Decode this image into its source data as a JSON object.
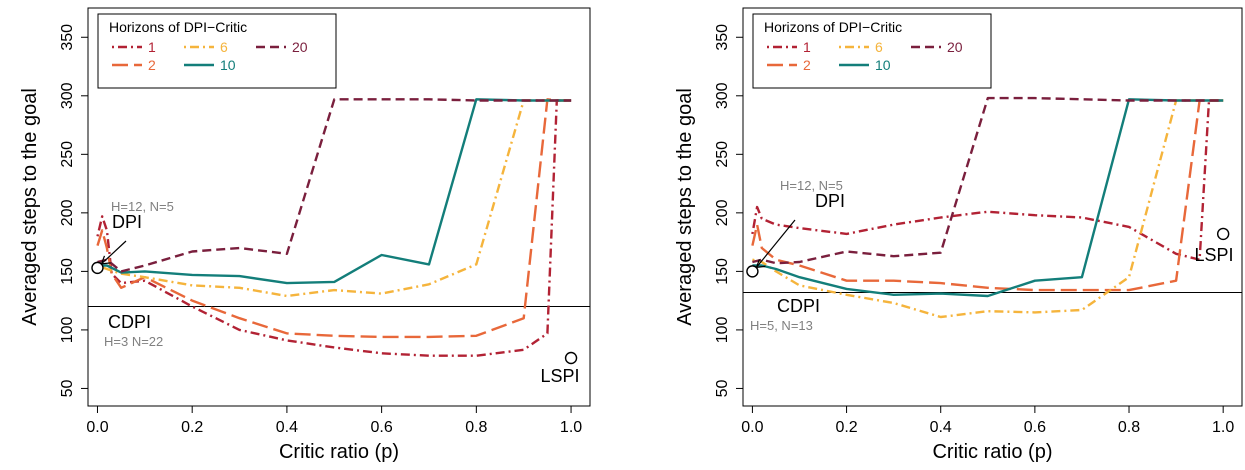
{
  "colors": {
    "1": "#b22234",
    "2": "#e8683a",
    "6": "#f5b43c",
    "10": "#137e7a",
    "20": "#7a1f3d",
    "ref_line": "#000000",
    "annotation_gray": "#808080"
  },
  "chart_data": [
    {
      "type": "line",
      "xlabel": "Critic ratio (p)",
      "ylabel": "Averaged steps to the goal",
      "xlim": [
        -0.02,
        1.04
      ],
      "ylim": [
        35,
        375
      ],
      "xticks": [
        "0.0",
        "0.2",
        "0.4",
        "0.6",
        "0.8",
        "1.0"
      ],
      "yticks": [
        "50",
        "100",
        "150",
        "200",
        "250",
        "300",
        "350"
      ],
      "legend": {
        "title": "Horizons of DPI−Critic",
        "position": "top-left",
        "entries": [
          "1",
          "2",
          "6",
          "10",
          "20"
        ]
      },
      "hline": {
        "y": 120,
        "label": "CDPI",
        "note": "H=3 N=22"
      },
      "annotations": [
        {
          "label": "DPI",
          "note": "H=12, N=5",
          "point": [
            0.0,
            153
          ]
        },
        {
          "label": "LSPI",
          "point": [
            1.0,
            76
          ]
        }
      ],
      "series": [
        {
          "name": "1",
          "style": "dotdash",
          "x": [
            0.0,
            0.01,
            0.02,
            0.03,
            0.05,
            0.1,
            0.2,
            0.3,
            0.4,
            0.5,
            0.6,
            0.7,
            0.8,
            0.9,
            0.95,
            0.97,
            1.0
          ],
          "y": [
            180,
            197,
            185,
            148,
            140,
            142,
            120,
            100,
            91,
            85,
            80,
            78,
            78,
            83,
            97,
            296,
            296
          ]
        },
        {
          "name": "2",
          "style": "longdash",
          "x": [
            0.0,
            0.01,
            0.02,
            0.03,
            0.05,
            0.1,
            0.2,
            0.3,
            0.4,
            0.5,
            0.6,
            0.7,
            0.8,
            0.9,
            0.95,
            0.97,
            1.0
          ],
          "y": [
            172,
            185,
            170,
            148,
            136,
            145,
            125,
            110,
            97,
            95,
            94,
            94,
            95,
            110,
            297,
            296,
            296
          ]
        },
        {
          "name": "6",
          "style": "dotdash",
          "x": [
            0.0,
            0.02,
            0.05,
            0.1,
            0.2,
            0.3,
            0.4,
            0.5,
            0.6,
            0.7,
            0.8,
            0.9,
            1.0
          ],
          "y": [
            155,
            152,
            148,
            145,
            138,
            136,
            129,
            134,
            131,
            139,
            156,
            296,
            296
          ]
        },
        {
          "name": "10",
          "style": "solid",
          "x": [
            0.0,
            0.02,
            0.05,
            0.1,
            0.2,
            0.3,
            0.4,
            0.5,
            0.6,
            0.7,
            0.8,
            0.9,
            1.0
          ],
          "y": [
            155,
            155,
            149,
            150,
            147,
            146,
            140,
            141,
            164,
            156,
            297,
            296,
            296
          ]
        },
        {
          "name": "20",
          "style": "dash",
          "x": [
            0.0,
            0.02,
            0.05,
            0.1,
            0.2,
            0.3,
            0.4,
            0.5,
            0.6,
            0.7,
            0.8,
            0.9,
            1.0
          ],
          "y": [
            158,
            160,
            150,
            155,
            167,
            170,
            165,
            297,
            297,
            297,
            296,
            296,
            296
          ]
        }
      ]
    },
    {
      "type": "line",
      "xlabel": "Critic ratio (p)",
      "ylabel": "Averaged steps to the goal",
      "xlim": [
        -0.02,
        1.04
      ],
      "ylim": [
        35,
        375
      ],
      "xticks": [
        "0.0",
        "0.2",
        "0.4",
        "0.6",
        "0.8",
        "1.0"
      ],
      "yticks": [
        "50",
        "100",
        "150",
        "200",
        "250",
        "300",
        "350"
      ],
      "legend": {
        "title": "Horizons of DPI−Critic",
        "position": "top-left",
        "entries": [
          "1",
          "2",
          "6",
          "10",
          "20"
        ]
      },
      "hline": {
        "y": 132,
        "label": "CDPI",
        "note": "H=5, N=13"
      },
      "annotations": [
        {
          "label": "DPI",
          "note": "H=12, N=5",
          "point": [
            0.0,
            150
          ]
        },
        {
          "label": "LSPI",
          "point": [
            1.0,
            182
          ]
        }
      ],
      "series": [
        {
          "name": "1",
          "style": "dotdash",
          "x": [
            0.0,
            0.01,
            0.02,
            0.05,
            0.1,
            0.2,
            0.3,
            0.4,
            0.5,
            0.6,
            0.7,
            0.8,
            0.9,
            0.95,
            0.97,
            1.0
          ],
          "y": [
            182,
            205,
            195,
            190,
            187,
            182,
            190,
            196,
            201,
            198,
            196,
            188,
            165,
            160,
            296,
            296
          ]
        },
        {
          "name": "2",
          "style": "longdash",
          "x": [
            0.0,
            0.01,
            0.02,
            0.05,
            0.1,
            0.2,
            0.3,
            0.4,
            0.5,
            0.6,
            0.7,
            0.8,
            0.9,
            0.95,
            1.0
          ],
          "y": [
            172,
            190,
            170,
            160,
            155,
            142,
            142,
            140,
            136,
            134,
            134,
            134,
            142,
            296,
            296
          ]
        },
        {
          "name": "6",
          "style": "dotdash",
          "x": [
            0.0,
            0.02,
            0.05,
            0.1,
            0.2,
            0.3,
            0.4,
            0.5,
            0.6,
            0.7,
            0.8,
            0.9,
            1.0
          ],
          "y": [
            160,
            158,
            150,
            138,
            130,
            123,
            111,
            116,
            115,
            117,
            145,
            296,
            296
          ]
        },
        {
          "name": "10",
          "style": "solid",
          "x": [
            0.0,
            0.02,
            0.05,
            0.1,
            0.2,
            0.3,
            0.4,
            0.5,
            0.6,
            0.7,
            0.8,
            0.9,
            1.0
          ],
          "y": [
            155,
            155,
            152,
            145,
            135,
            130,
            131,
            129,
            142,
            145,
            297,
            296,
            296
          ]
        },
        {
          "name": "20",
          "style": "dash",
          "x": [
            0.0,
            0.02,
            0.05,
            0.1,
            0.2,
            0.3,
            0.4,
            0.5,
            0.6,
            0.7,
            0.8,
            0.9,
            1.0
          ],
          "y": [
            158,
            160,
            157,
            158,
            167,
            163,
            166,
            298,
            298,
            297,
            296,
            296,
            296
          ]
        }
      ]
    }
  ]
}
